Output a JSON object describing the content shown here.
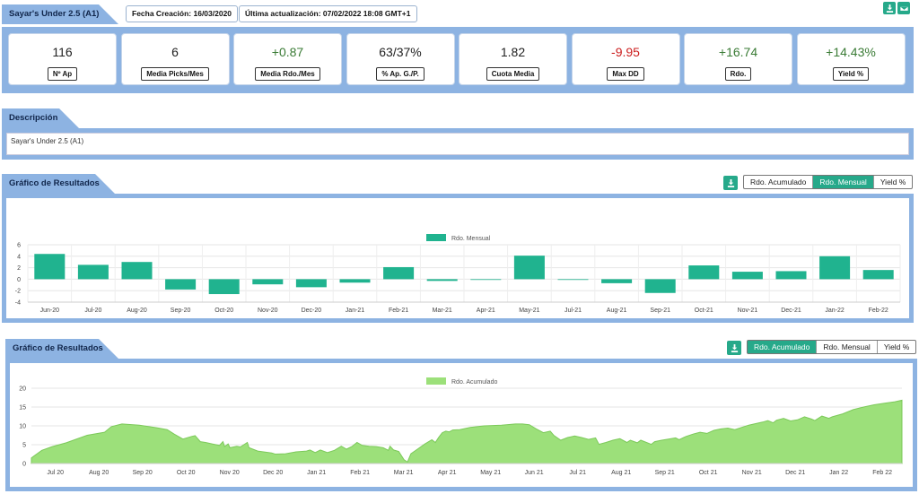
{
  "header": {
    "title": "Sayar's Under 2.5 (A1)",
    "created_label": "Fecha Creación: 16/03/2020",
    "updated_label": "Última actualización: 07/02/2022 18:08 GMT+1"
  },
  "stats": [
    {
      "value": "116",
      "label": "Nº Ap",
      "tone": "neutral"
    },
    {
      "value": "6",
      "label": "Media Picks/Mes",
      "tone": "neutral"
    },
    {
      "value": "+0.87",
      "label": "Media Rdo./Mes",
      "tone": "pos"
    },
    {
      "value": "63/37%",
      "label": "% Ap. G./P.",
      "tone": "neutral"
    },
    {
      "value": "1.82",
      "label": "Cuota Media",
      "tone": "neutral"
    },
    {
      "value": "-9.95",
      "label": "Max DD",
      "tone": "neg"
    },
    {
      "value": "+16.74",
      "label": "Rdo.",
      "tone": "pos"
    },
    {
      "value": "+14.43%",
      "label": "Yield %",
      "tone": "pos"
    }
  ],
  "description": {
    "title": "Descripción",
    "text": "Sayar's Under 2.5 (A1)"
  },
  "chart1_panel": {
    "title": "Gráfico de Resultados",
    "toggles": [
      "Rdo. Acumulado",
      "Rdo. Mensual",
      "Yield %"
    ],
    "active": 1
  },
  "chart2_panel": {
    "title": "Gráfico de Resultados",
    "toggles": [
      "Rdo. Acumulado",
      "Rdo. Mensual",
      "Yield %"
    ],
    "active": 0
  },
  "colors": {
    "frame": "#8db3e2",
    "accent": "#26a98a",
    "bar": "#20b38f",
    "area_fill": "#9ce07a",
    "area_line": "#7cc95a",
    "positive": "#3a7b35",
    "negative": "#cc1f1f"
  },
  "icons": {
    "download": "download-icon",
    "email": "envelope-icon"
  },
  "chart_data": [
    {
      "type": "bar",
      "title": "",
      "legend": [
        "Rdo. Mensual"
      ],
      "legend_position": "top-center",
      "categories": [
        "Jun-20",
        "Jul-20",
        "Aug-20",
        "Sep-20",
        "Oct-20",
        "Nov-20",
        "Dec-20",
        "Jan-21",
        "Feb-21",
        "Mar-21",
        "Apr-21",
        "May-21",
        "Jul-21",
        "Aug-21",
        "Sep-21",
        "Oct-21",
        "Nov-21",
        "Dec-21",
        "Jan-22",
        "Feb-22"
      ],
      "series": [
        {
          "name": "Rdo. Mensual",
          "values": [
            4.4,
            2.5,
            3.0,
            -1.8,
            -2.6,
            -0.9,
            -1.4,
            -0.6,
            2.1,
            -0.3,
            0,
            4.1,
            -0.1,
            -0.7,
            -2.4,
            2.4,
            1.3,
            1.4,
            4.0,
            1.6
          ]
        }
      ],
      "ylim": [
        -4,
        6
      ],
      "yticks": [
        -4,
        -2,
        0,
        2,
        4,
        6
      ],
      "grid": true
    },
    {
      "type": "area",
      "title": "",
      "legend": [
        "Rdo. Acumulado"
      ],
      "legend_position": "top-center",
      "xticks": [
        "Jul 20",
        "Aug 20",
        "Sep 20",
        "Oct 20",
        "Nov 20",
        "Dec 20",
        "Jan 21",
        "Feb 21",
        "Mar 21",
        "Apr 21",
        "May 21",
        "Jun 21",
        "Jul 21",
        "Aug 21",
        "Sep 21",
        "Oct 21",
        "Nov 21",
        "Dec 21",
        "Jan 22",
        "Feb 22"
      ],
      "series": [
        {
          "name": "Rdo. Acumulado",
          "points": [
            [
              0,
              1.5
            ],
            [
              0.3,
              3.5
            ],
            [
              0.6,
              4.5
            ],
            [
              1,
              5.5
            ],
            [
              1.6,
              7.5
            ],
            [
              2.1,
              8.3
            ],
            [
              2.3,
              9.8
            ],
            [
              2.6,
              10.5
            ],
            [
              3.1,
              10.2
            ],
            [
              3.6,
              9.5
            ],
            [
              3.9,
              9.0
            ],
            [
              4.1,
              7.8
            ],
            [
              4.35,
              6.5
            ],
            [
              4.6,
              7.2
            ],
            [
              4.7,
              7.4
            ],
            [
              4.85,
              5.8
            ],
            [
              5,
              5.6
            ],
            [
              5.2,
              5.2
            ],
            [
              5.4,
              4.8
            ],
            [
              5.5,
              5.8
            ],
            [
              5.55,
              4.5
            ],
            [
              5.65,
              5.2
            ],
            [
              5.7,
              4.2
            ],
            [
              5.9,
              4.6
            ],
            [
              6.0,
              4.4
            ],
            [
              6.2,
              5.6
            ],
            [
              6.25,
              4.2
            ],
            [
              6.5,
              3.3
            ],
            [
              6.9,
              2.8
            ],
            [
              7.0,
              2.5
            ],
            [
              7.3,
              2.6
            ],
            [
              7.6,
              3.1
            ],
            [
              7.9,
              3.3
            ],
            [
              8.0,
              3.6
            ],
            [
              8.15,
              2.9
            ],
            [
              8.3,
              3.6
            ],
            [
              8.5,
              2.9
            ],
            [
              8.7,
              3.5
            ],
            [
              8.9,
              4.6
            ],
            [
              9.05,
              3.8
            ],
            [
              9.2,
              4.5
            ],
            [
              9.35,
              5.6
            ],
            [
              9.5,
              4.8
            ],
            [
              9.7,
              4.6
            ],
            [
              9.9,
              4.5
            ],
            [
              10.1,
              4.2
            ],
            [
              10.25,
              3.5
            ],
            [
              10.3,
              4.6
            ],
            [
              10.4,
              3.6
            ],
            [
              10.55,
              3.2
            ],
            [
              10.7,
              1.0
            ],
            [
              10.8,
              0.4
            ],
            [
              10.9,
              2.6
            ],
            [
              11.1,
              3.9
            ],
            [
              11.3,
              5.2
            ],
            [
              11.5,
              6.3
            ],
            [
              11.6,
              5.6
            ],
            [
              11.7,
              7.0
            ],
            [
              11.8,
              8.2
            ],
            [
              11.9,
              8.6
            ],
            [
              12.0,
              8.4
            ],
            [
              12.1,
              8.9
            ],
            [
              12.3,
              9.0
            ],
            [
              12.6,
              9.6
            ],
            [
              13.0,
              10.0
            ],
            [
              13.5,
              10.2
            ],
            [
              13.9,
              10.5
            ],
            [
              14.1,
              10.5
            ],
            [
              14.3,
              10.3
            ],
            [
              14.5,
              9.2
            ],
            [
              14.7,
              8.2
            ],
            [
              14.9,
              8.6
            ],
            [
              15.0,
              7.5
            ],
            [
              15.2,
              6.2
            ],
            [
              15.4,
              6.9
            ],
            [
              15.6,
              7.3
            ],
            [
              15.8,
              6.9
            ],
            [
              16.0,
              6.4
            ],
            [
              16.2,
              6.8
            ],
            [
              16.3,
              5.1
            ],
            [
              16.5,
              5.6
            ],
            [
              16.7,
              6.2
            ],
            [
              16.9,
              6.6
            ],
            [
              17.1,
              5.6
            ],
            [
              17.2,
              6.2
            ],
            [
              17.4,
              5.5
            ],
            [
              17.5,
              6.2
            ],
            [
              17.8,
              5.1
            ],
            [
              17.9,
              5.8
            ],
            [
              18.1,
              6.2
            ],
            [
              18.3,
              6.5
            ],
            [
              18.5,
              6.8
            ],
            [
              18.6,
              6.3
            ],
            [
              18.8,
              7.2
            ],
            [
              19.0,
              7.8
            ],
            [
              19.2,
              8.3
            ],
            [
              19.4,
              8.0
            ],
            [
              19.6,
              8.8
            ],
            [
              19.8,
              9.2
            ],
            [
              20.0,
              9.4
            ],
            [
              20.2,
              9.0
            ],
            [
              20.4,
              9.6
            ],
            [
              20.6,
              10.2
            ],
            [
              20.8,
              10.6
            ],
            [
              21.0,
              11.0
            ],
            [
              21.15,
              11.4
            ],
            [
              21.3,
              10.8
            ],
            [
              21.4,
              11.5
            ],
            [
              21.6,
              12.0
            ],
            [
              21.8,
              11.3
            ],
            [
              22.0,
              11.6
            ],
            [
              22.2,
              12.4
            ],
            [
              22.4,
              11.8
            ],
            [
              22.5,
              11.4
            ],
            [
              22.7,
              12.6
            ],
            [
              22.9,
              12.0
            ],
            [
              23.0,
              12.4
            ],
            [
              23.3,
              13.2
            ],
            [
              23.6,
              14.3
            ],
            [
              23.9,
              15.0
            ],
            [
              24.2,
              15.6
            ],
            [
              24.5,
              16.0
            ],
            [
              24.8,
              16.4
            ],
            [
              25.0,
              16.8
            ]
          ]
        }
      ],
      "ylim": [
        0,
        20
      ],
      "yticks": [
        0,
        5,
        10,
        15,
        20
      ],
      "grid": true
    }
  ]
}
